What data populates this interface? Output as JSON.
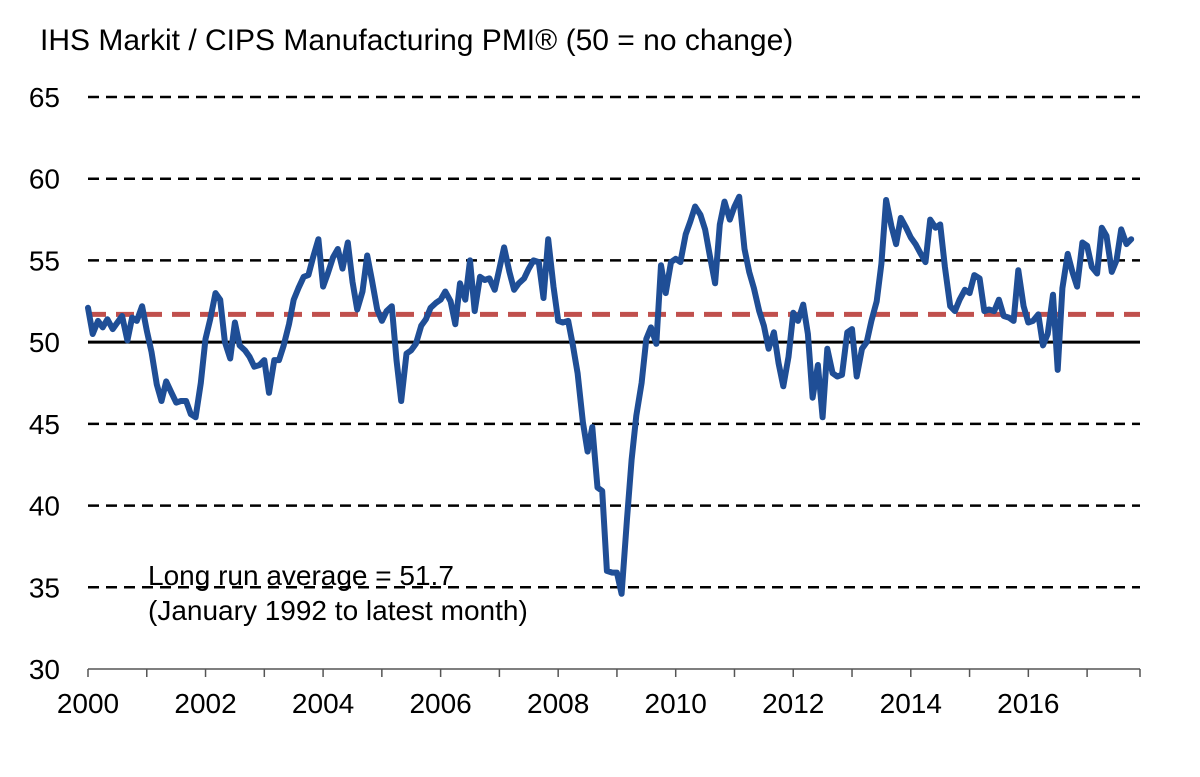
{
  "chart_data": {
    "type": "line",
    "title": "IHS Markit / CIPS Manufacturing PMI® (50 = no change)",
    "xlabel": "",
    "ylabel": "",
    "xlim": [
      2000,
      2017.9
    ],
    "ylim": [
      30,
      65
    ],
    "y_ticks": [
      30,
      35,
      40,
      45,
      50,
      55,
      60,
      65
    ],
    "x_tick_labels": [
      "2000",
      "2002",
      "2004",
      "2006",
      "2008",
      "2010",
      "2012",
      "2014",
      "2016"
    ],
    "grid": "dashed horizontal at 35, 40, 45, 55, 60, 65; solid at 50",
    "reference_line": {
      "value": 51.7,
      "color": "#c0504d",
      "style": "dashed"
    },
    "annotation": [
      "Long run average = 51.7",
      "(January 1992 to latest month)"
    ],
    "colors": {
      "series": "#1f4e96",
      "average": "#c0504d",
      "grid": "#000000"
    },
    "series": [
      {
        "x": [
          2000.0,
          2000.08,
          2000.17,
          2000.25,
          2000.33,
          2000.42,
          2000.5,
          2000.58,
          2000.67,
          2000.75,
          2000.83,
          2000.92,
          2001.0,
          2001.08,
          2001.17,
          2001.25,
          2001.33,
          2001.42,
          2001.5,
          2001.58,
          2001.67,
          2001.75,
          2001.83,
          2001.92,
          2002.0,
          2002.08,
          2002.17,
          2002.25,
          2002.33,
          2002.42,
          2002.5,
          2002.58,
          2002.67,
          2002.75,
          2002.83,
          2002.92,
          2003.0,
          2003.08,
          2003.17,
          2003.25,
          2003.33,
          2003.42,
          2003.5,
          2003.58,
          2003.67,
          2003.75,
          2003.83,
          2003.92,
          2004.0,
          2004.08,
          2004.17,
          2004.25,
          2004.33,
          2004.42,
          2004.5,
          2004.58,
          2004.67,
          2004.75,
          2004.83,
          2004.92,
          2005.0,
          2005.08,
          2005.17,
          2005.25,
          2005.33,
          2005.42,
          2005.5,
          2005.58,
          2005.67,
          2005.75,
          2005.83,
          2005.92,
          2006.0,
          2006.08,
          2006.17,
          2006.25,
          2006.33,
          2006.42,
          2006.5,
          2006.58,
          2006.67,
          2006.75,
          2006.83,
          2006.92,
          2007.0,
          2007.08,
          2007.17,
          2007.25,
          2007.33,
          2007.42,
          2007.5,
          2007.58,
          2007.67,
          2007.75,
          2007.83,
          2007.92,
          2008.0,
          2008.08,
          2008.17,
          2008.25,
          2008.33,
          2008.42,
          2008.5,
          2008.58,
          2008.67,
          2008.75,
          2008.83,
          2008.92,
          2009.0,
          2009.08,
          2009.17,
          2009.25,
          2009.33,
          2009.42,
          2009.5,
          2009.58,
          2009.67,
          2009.75,
          2009.83,
          2009.92,
          2010.0,
          2010.08,
          2010.17,
          2010.25,
          2010.33,
          2010.42,
          2010.5,
          2010.58,
          2010.67,
          2010.75,
          2010.83,
          2010.92,
          2011.0,
          2011.08,
          2011.17,
          2011.25,
          2011.33,
          2011.42,
          2011.5,
          2011.58,
          2011.67,
          2011.75,
          2011.83,
          2011.92,
          2012.0,
          2012.08,
          2012.17,
          2012.25,
          2012.33,
          2012.42,
          2012.5,
          2012.58,
          2012.67,
          2012.75,
          2012.83,
          2012.92,
          2013.0,
          2013.08,
          2013.17,
          2013.25,
          2013.33,
          2013.42,
          2013.5,
          2013.58,
          2013.67,
          2013.75,
          2013.83,
          2013.92,
          2014.0,
          2014.08,
          2014.17,
          2014.25,
          2014.33,
          2014.42,
          2014.5,
          2014.58,
          2014.67,
          2014.75,
          2014.83,
          2014.92,
          2015.0,
          2015.08,
          2015.17,
          2015.25,
          2015.33,
          2015.42,
          2015.5,
          2015.58,
          2015.67,
          2015.75,
          2015.83,
          2015.92,
          2016.0,
          2016.08,
          2016.17,
          2016.25,
          2016.33,
          2016.42,
          2016.5,
          2016.58,
          2016.67,
          2016.75,
          2016.83,
          2016.92,
          2017.0,
          2017.08,
          2017.17,
          2017.25,
          2017.33,
          2017.42,
          2017.5,
          2017.58,
          2017.67,
          2017.75
        ],
        "values": [
          52.1,
          50.5,
          51.3,
          50.9,
          51.4,
          50.8,
          51.2,
          51.6,
          50.1,
          51.5,
          51.3,
          52.2,
          50.7,
          49.4,
          47.4,
          46.4,
          47.6,
          46.9,
          46.3,
          46.4,
          46.4,
          45.6,
          45.4,
          47.5,
          50.2,
          51.4,
          53.0,
          52.6,
          50.0,
          49.0,
          51.2,
          49.8,
          49.5,
          49.1,
          48.5,
          48.6,
          48.9,
          46.9,
          48.9,
          48.9,
          49.8,
          51.1,
          52.6,
          53.3,
          54.0,
          54.1,
          55.2,
          56.3,
          53.4,
          54.2,
          55.2,
          55.7,
          54.5,
          56.1,
          53.7,
          52.0,
          53.1,
          55.3,
          53.8,
          52.0,
          51.3,
          51.9,
          52.2,
          48.9,
          46.4,
          49.3,
          49.5,
          49.9,
          51.0,
          51.4,
          52.1,
          52.4,
          52.6,
          53.1,
          52.5,
          51.1,
          53.6,
          52.6,
          55.0,
          51.9,
          54.0,
          53.8,
          53.9,
          53.2,
          54.5,
          55.8,
          54.3,
          53.2,
          53.6,
          53.9,
          54.5,
          55.0,
          54.9,
          52.7,
          56.3,
          53.4,
          51.3,
          51.2,
          51.3,
          49.8,
          48.1,
          45.1,
          43.3,
          44.8,
          41.1,
          40.9,
          36.0,
          35.9,
          35.9,
          34.6,
          39.1,
          42.8,
          45.5,
          47.5,
          50.2,
          50.9,
          49.9,
          54.7,
          53.0,
          54.9,
          55.1,
          54.9,
          56.6,
          57.4,
          58.3,
          57.8,
          56.9,
          55.3,
          53.6,
          57.2,
          58.6,
          57.5,
          58.3,
          58.9,
          55.7,
          54.3,
          53.3,
          51.9,
          51.0,
          49.6,
          50.6,
          48.7,
          47.3,
          49.1,
          51.8,
          51.3,
          52.3,
          50.5,
          46.6,
          48.6,
          45.4,
          49.6,
          48.1,
          47.9,
          48.0,
          50.6,
          50.8,
          47.9,
          49.6,
          50.0,
          51.3,
          52.5,
          54.8,
          58.7,
          57.1,
          56.0,
          57.6,
          57.0,
          56.4,
          56.0,
          55.4,
          54.9,
          57.5,
          57.0,
          57.2,
          54.6,
          52.2,
          51.9,
          52.6,
          53.2,
          53.0,
          54.1,
          53.9,
          51.9,
          52.0,
          51.9,
          52.6,
          51.6,
          51.5,
          51.3,
          54.4,
          52.2,
          51.2,
          51.3,
          51.7,
          49.8,
          50.5,
          52.9,
          48.3,
          53.3,
          55.4,
          54.3,
          53.4,
          56.1,
          55.9,
          54.6,
          54.2,
          57.0,
          56.5,
          54.3,
          55.0,
          56.9,
          56.0,
          56.3
        ]
      }
    ]
  }
}
